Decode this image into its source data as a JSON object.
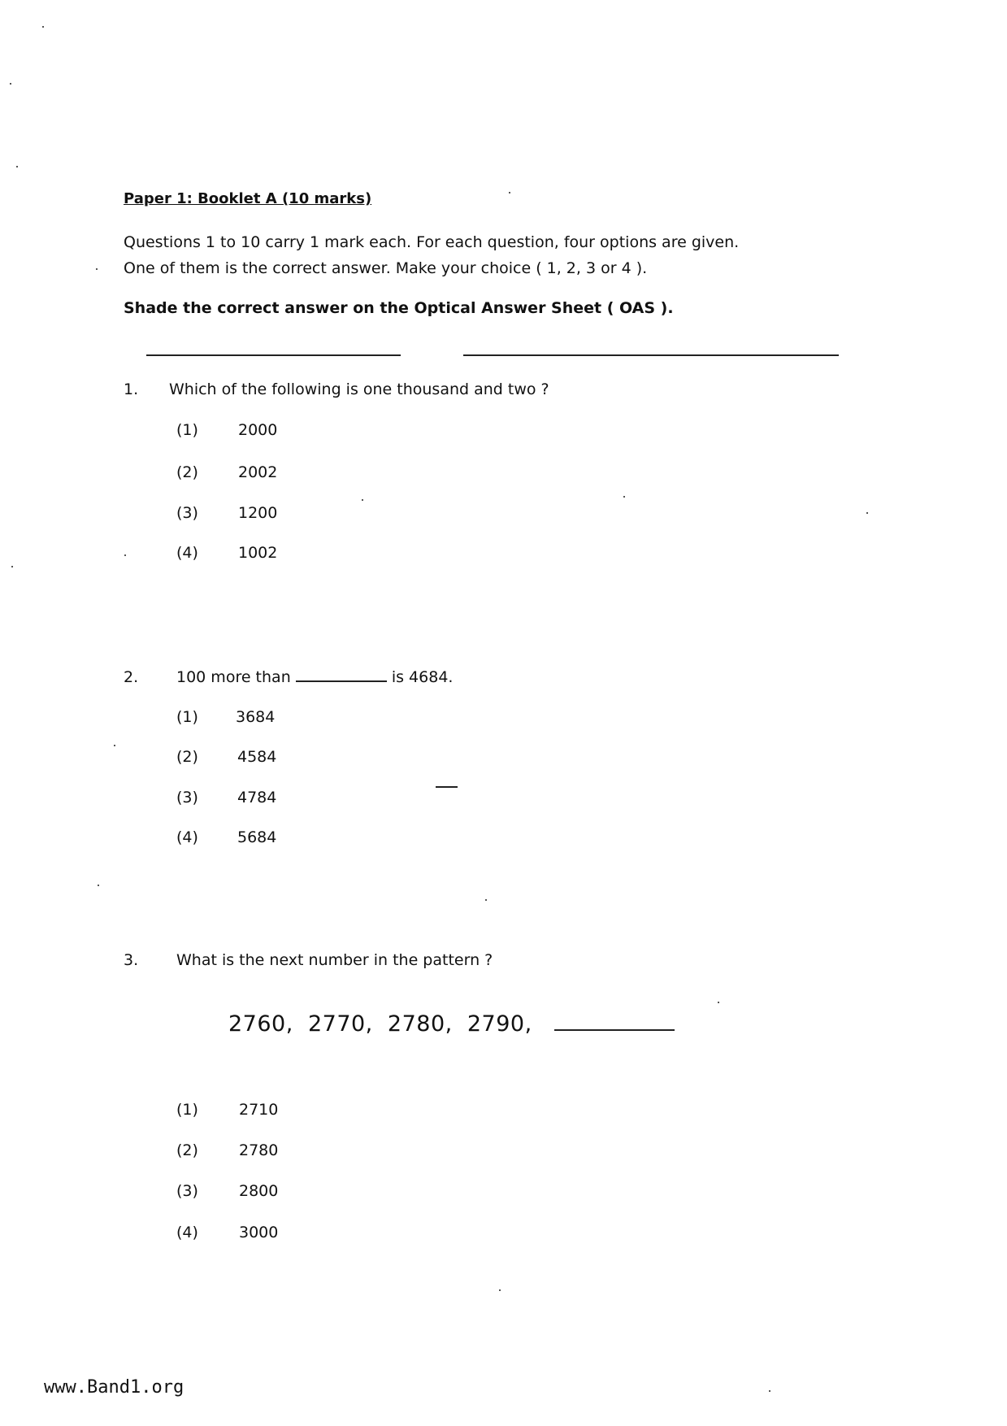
{
  "header": {
    "title": "Paper 1: Booklet A (10 marks)",
    "instructions_line1": "Questions 1 to 10 carry 1 mark each. For each question, four options are given.",
    "instructions_line2": "One of them is the correct answer. Make your choice ( 1, 2, 3 or 4 ).",
    "instructions_bold": "Shade the correct answer on the Optical Answer Sheet ( OAS )."
  },
  "questions": [
    {
      "number": "1.",
      "text": "Which of the following is one thousand and two ?",
      "options": [
        {
          "label": "(1)",
          "value": "2000"
        },
        {
          "label": "(2)",
          "value": "2002"
        },
        {
          "label": "(3)",
          "value": "1200"
        },
        {
          "label": "(4)",
          "value": "1002"
        }
      ]
    },
    {
      "number": "2.",
      "text_before": "100 more than",
      "text_after": "is 4684.",
      "options": [
        {
          "label": "(1)",
          "value": "3684"
        },
        {
          "label": "(2)",
          "value": "4584"
        },
        {
          "label": "(3)",
          "value": "4784"
        },
        {
          "label": "(4)",
          "value": "5684"
        }
      ]
    },
    {
      "number": "3.",
      "text": "What is the next number in the pattern ?",
      "pattern": "2760,  2770,  2780,  2790,",
      "options": [
        {
          "label": "(1)",
          "value": "2710"
        },
        {
          "label": "(2)",
          "value": "2780"
        },
        {
          "label": "(3)",
          "value": "2800"
        },
        {
          "label": "(4)",
          "value": "3000"
        }
      ]
    }
  ],
  "footer": {
    "watermark": "www.Band1.org"
  }
}
